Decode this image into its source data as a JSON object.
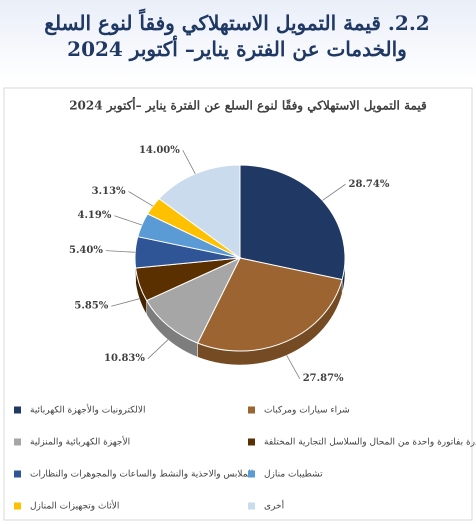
{
  "heading": "2.2. قيمة التمويل الاستهلاكي وفقاً لنوع السلع والخدمات عن الفترة يناير– أكتوبر 2024",
  "chart_data": {
    "type": "pie",
    "title": "قيمة التمويل الاستهلاكي وفقًا لنوع السلع عن الفترة يناير –أكتوبر 2024",
    "categories": [
      "الالكترونيات والأجهزة الكهربائية",
      "شراء سيارات ومركبات",
      "الأجهزة الكهربائية والمنزلية",
      "المشتريات الصادرة بفاتورة واحدة من المحال والسلاسل التجارية المختلفة",
      "الملابس والاحذية والنشط والساعات والمجوهرات والنظارات",
      "تشطيبات منازل",
      "الأثاث وتجهيزات المنازل",
      "أخرى"
    ],
    "values": [
      28.74,
      27.87,
      10.83,
      5.85,
      5.4,
      4.19,
      3.13,
      14.0
    ],
    "value_labels": [
      "28.74%",
      "27.87%",
      "10.83%",
      "5.85%",
      "5.40%",
      "4.19%",
      "3.13%",
      "14.00%"
    ],
    "colors": [
      "#1f3864",
      "#9c6430",
      "#a6a6a6",
      "#5a3000",
      "#2f5597",
      "#5b9bd5",
      "#ffc000",
      "#c9dbec"
    ]
  }
}
